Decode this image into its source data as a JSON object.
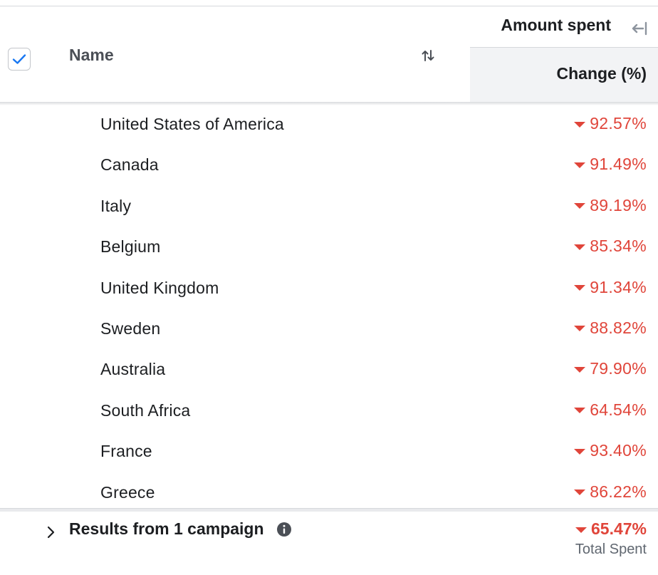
{
  "header": {
    "name_label": "Name",
    "amount_label": "Amount spent",
    "change_label": "Change (%)"
  },
  "rows": [
    {
      "name": "United States of America",
      "change": "92.57%"
    },
    {
      "name": "Canada",
      "change": "91.49%"
    },
    {
      "name": "Italy",
      "change": "89.19%"
    },
    {
      "name": "Belgium",
      "change": "85.34%"
    },
    {
      "name": "United Kingdom",
      "change": "91.34%"
    },
    {
      "name": "Sweden",
      "change": "88.82%"
    },
    {
      "name": "Australia",
      "change": "79.90%"
    },
    {
      "name": "South Africa",
      "change": "64.54%"
    },
    {
      "name": "France",
      "change": "93.40%"
    },
    {
      "name": "Greece",
      "change": "86.22%"
    }
  ],
  "footer": {
    "label": "Results from 1 campaign",
    "change": "65.47%",
    "sublabel": "Total Spent"
  },
  "colors": {
    "decrease": "#e0453a",
    "checkbox_check": "#1877f2",
    "header_bg": "#f2f3f5"
  },
  "icons": {
    "checkbox": "check-icon",
    "sort": "sort-arrows-icon",
    "collapse": "collapse-column-icon",
    "decrease": "triangle-down-icon",
    "expand": "chevron-right-icon",
    "info": "info-icon"
  }
}
